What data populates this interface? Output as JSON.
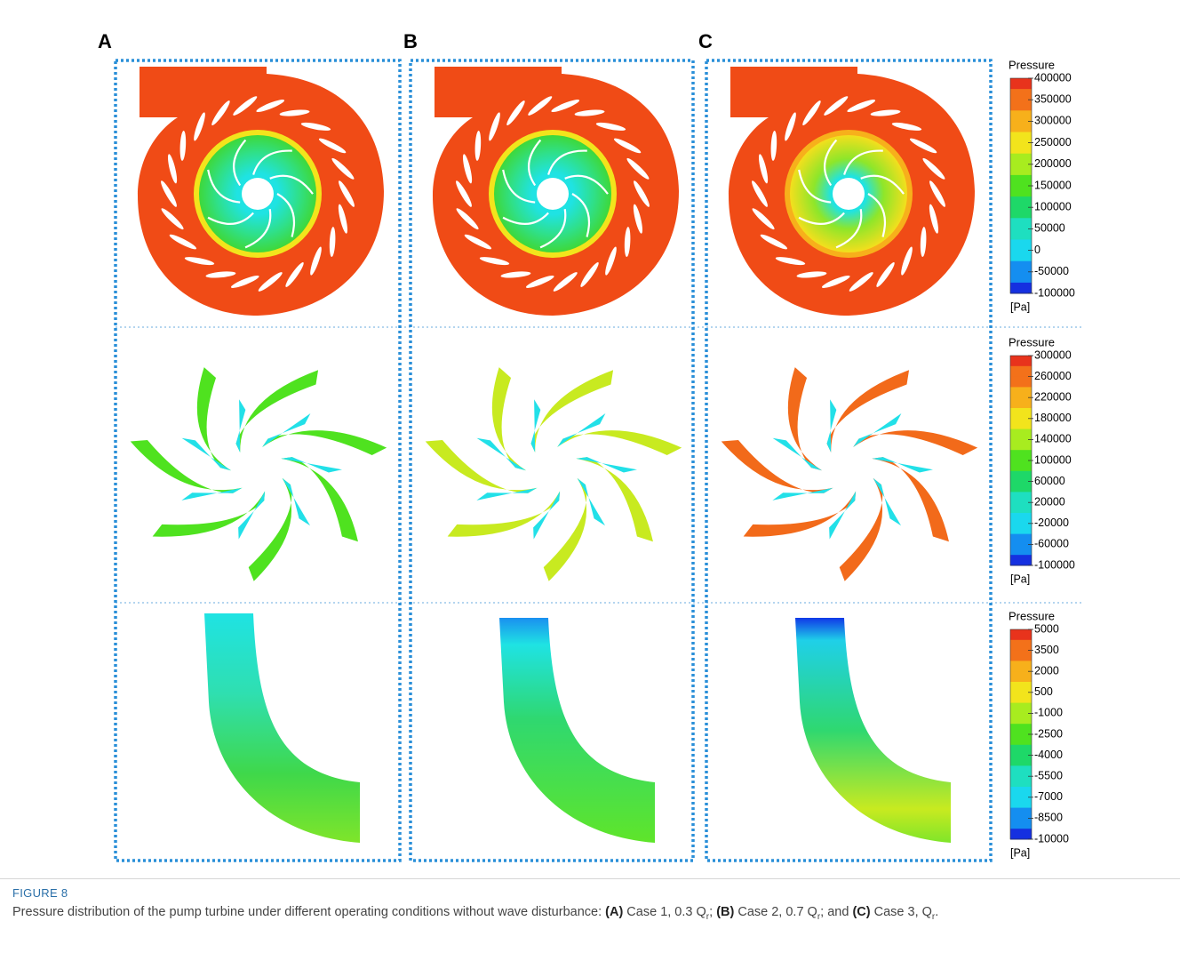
{
  "figure": {
    "panel_labels": [
      "A",
      "B",
      "C"
    ],
    "colorbars": [
      {
        "title": "Pressure",
        "ticks": [
          400000,
          350000,
          300000,
          250000,
          200000,
          150000,
          100000,
          50000,
          0,
          -50000,
          -100000
        ],
        "unit": "[Pa]"
      },
      {
        "title": "Pressure",
        "ticks": [
          300000,
          260000,
          220000,
          180000,
          140000,
          100000,
          60000,
          20000,
          -20000,
          -60000,
          -100000
        ],
        "unit": "[Pa]"
      },
      {
        "title": "Pressure",
        "ticks": [
          5000,
          3500,
          2000,
          500,
          -1000,
          -2500,
          -4000,
          -5500,
          -7000,
          -8500,
          -10000
        ],
        "unit": "[Pa]"
      }
    ],
    "caption": {
      "number": "FIGURE 8",
      "segments": [
        "Pressure distribution of the pump turbine under different operating conditions without wave disturbance: ",
        "(A)",
        " Case 1, 0.3 Q",
        "r",
        "; ",
        "(B)",
        " Case 2, 0.7 Q",
        "r",
        "; and ",
        "(C)",
        " Case 3, Q",
        "r",
        "."
      ]
    }
  }
}
